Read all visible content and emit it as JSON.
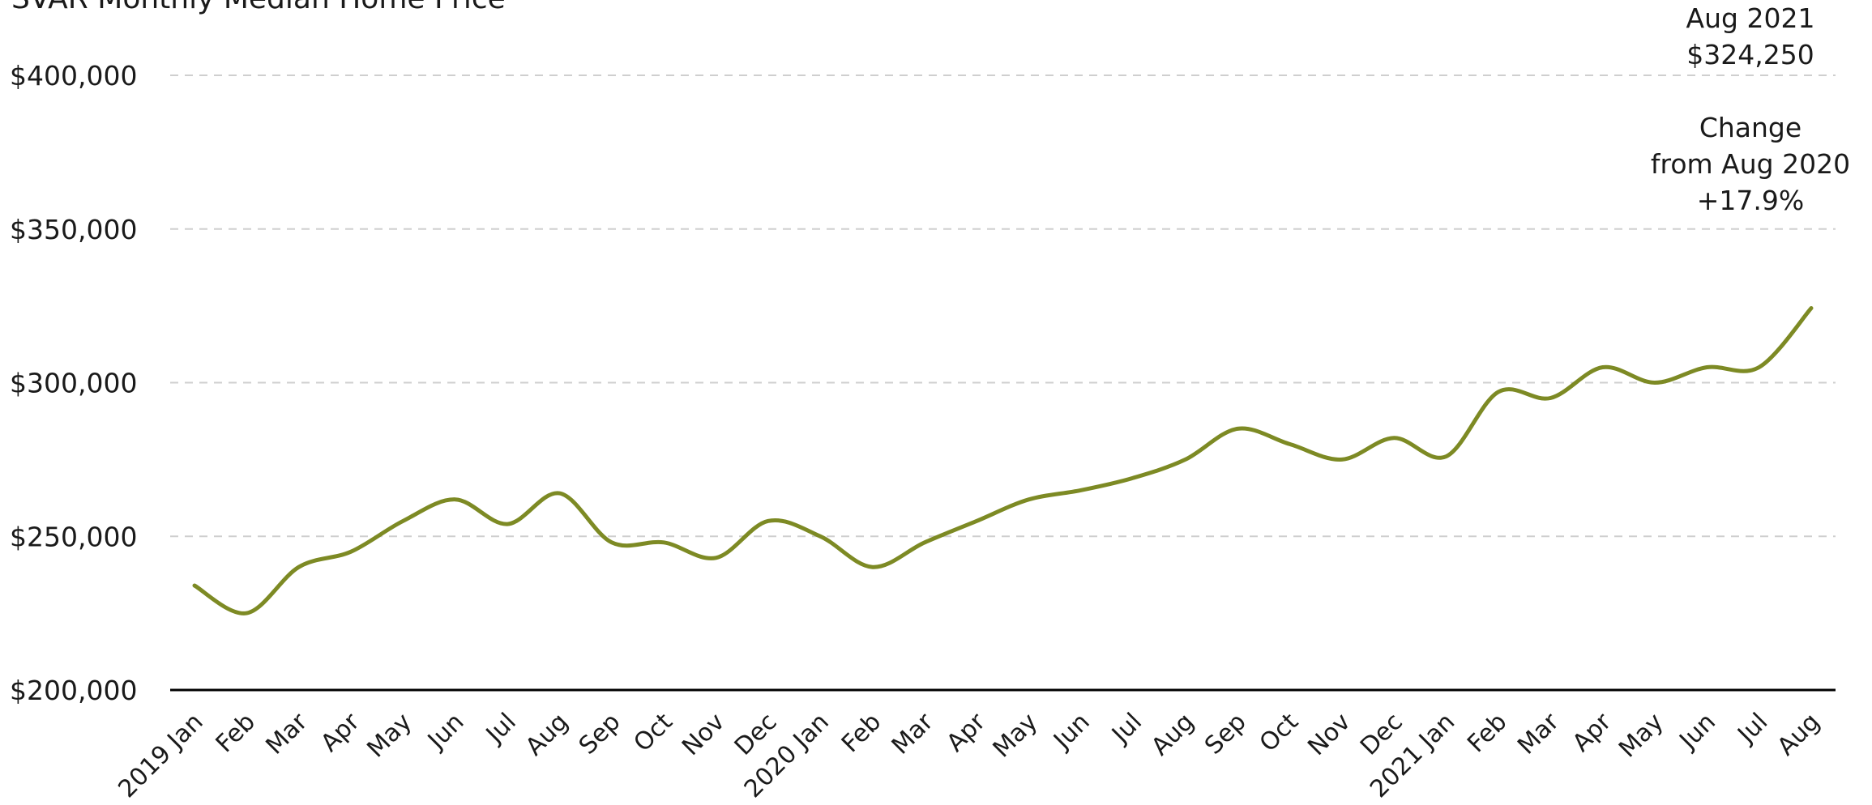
{
  "chart_data": {
    "type": "line",
    "title": "SVAR Monthly Median Home Price",
    "categories": [
      "2019 Jan",
      "Feb",
      "Mar",
      "Apr",
      "May",
      "Jun",
      "Jul",
      "Aug",
      "Sep",
      "Oct",
      "Nov",
      "Dec",
      "2020 Jan",
      "Feb",
      "Mar",
      "Apr",
      "May",
      "Jun",
      "Jul",
      "Aug",
      "Sep",
      "Oct",
      "Nov",
      "Dec",
      "2021 Jan",
      "Feb",
      "Mar",
      "Apr",
      "May",
      "Jun",
      "Jul",
      "Aug"
    ],
    "series": [
      {
        "values": [
          234000,
          225000,
          240000,
          245000,
          255000,
          262000,
          254000,
          264000,
          248000,
          248000,
          243000,
          255000,
          250000,
          240000,
          248000,
          255000,
          262000,
          265000,
          269000,
          275000,
          285000,
          280000,
          275000,
          282000,
          276000,
          297000,
          295000,
          305000,
          300000,
          305000,
          305000,
          324250
        ]
      }
    ],
    "ylim": [
      200000,
      400000
    ],
    "yticks": [
      200000,
      250000,
      300000,
      350000,
      400000
    ],
    "ytick_labels": [
      "$200,000",
      "$250,000",
      "$300,000",
      "$350,000",
      "$400,000"
    ],
    "grid": true,
    "line_color": "#7d8a24",
    "xlabel": "",
    "ylabel": ""
  },
  "annotation": {
    "latest_label": "Aug 2021",
    "latest_value": "$324,250",
    "change_line1": "Change",
    "change_line2": "from Aug 2020",
    "change_value": "+17.9%"
  }
}
